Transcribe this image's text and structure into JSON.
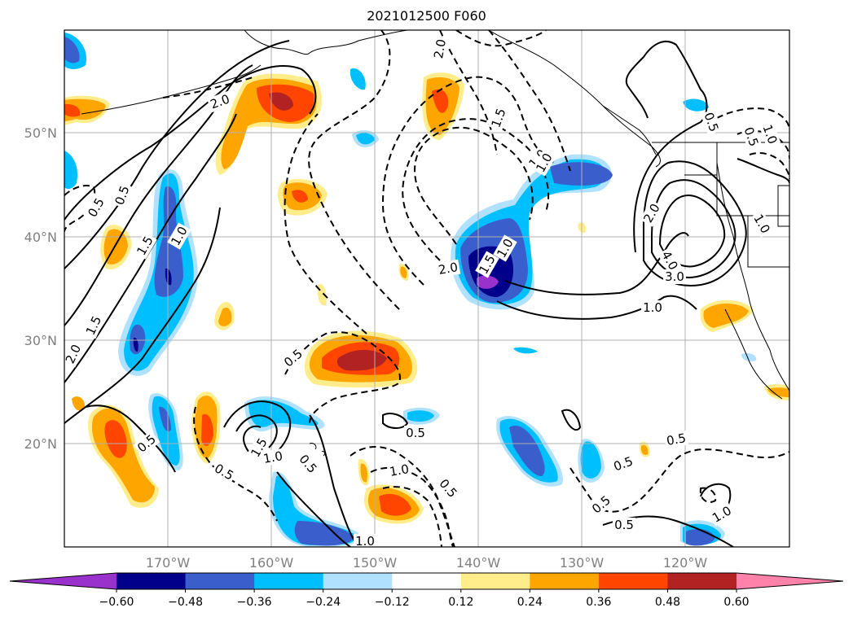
{
  "title": "2021012500 F060",
  "lat_labels": [
    "50°N",
    "40°N",
    "30°N",
    "20°N"
  ],
  "lon_labels": [
    "170°W",
    "160°W",
    "150°W",
    "140°W",
    "130°W",
    "120°W"
  ],
  "colorbar": {
    "labels": [
      "−0.60",
      "−0.48",
      "−0.36",
      "−0.24",
      "−0.12",
      "0.12",
      "0.24",
      "0.36",
      "0.48",
      "0.60"
    ],
    "colors": [
      "#9932CC",
      "#00008B",
      "#3A5FCD",
      "#00BFFF",
      "#B0E2FF",
      "#FFFFFF",
      "#FFEC8B",
      "#FFA500",
      "#FF4500",
      "#B22222",
      "#FF82AB"
    ]
  },
  "contour_labels": [
    "2.0",
    "2.0",
    "1.5",
    "1.0",
    "0.5",
    "0.5",
    "1.5",
    "1.0",
    "1.5",
    "2.0",
    "0.5",
    "0.5",
    "1.5",
    "1.0",
    "0.5",
    "2.0",
    "1.5",
    "1.0",
    "0.5",
    "0.5",
    "1.0",
    "0.5",
    "0.5",
    "1.0",
    "0.5",
    "1.0",
    "0.5",
    "0.5",
    "1.0",
    "1.0",
    "2.0",
    "4.0",
    "3.0",
    "1.0",
    "0.5",
    "0.5",
    "1.0"
  ],
  "fill_colors": {
    "purple": "#9932CC",
    "navy": "#00008B",
    "blue": "#3A5FCD",
    "cyan": "#00BFFF",
    "lightblue": "#B0E2FF",
    "yellow": "#FFEC8B",
    "orange": "#FFA500",
    "red": "#FF4500",
    "darkred": "#B22222"
  }
}
